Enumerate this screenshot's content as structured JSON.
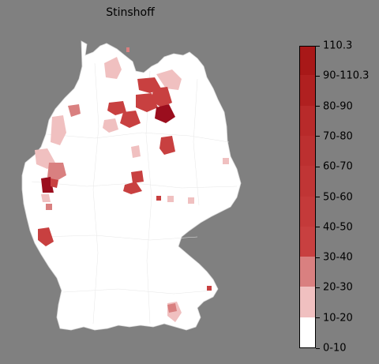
{
  "title": "Stinshoff",
  "legend": {
    "colors": [
      "#ffffff",
      "#f0c0c0",
      "#d98080",
      "#c84040",
      "#c43a3a",
      "#c03535",
      "#bc3030",
      "#b82a2a",
      "#b02020",
      "#a81818",
      "#9b0e1e"
    ],
    "ticks": [
      "0-10",
      "10-20",
      "20-30",
      "30-40",
      "40-50",
      "50-60",
      "60-70",
      "70-80",
      "80-90",
      "90-110.3",
      "110.3"
    ]
  },
  "map": {
    "background": "#808080",
    "land": "#ffffff",
    "border": "#d9d9d9"
  }
}
